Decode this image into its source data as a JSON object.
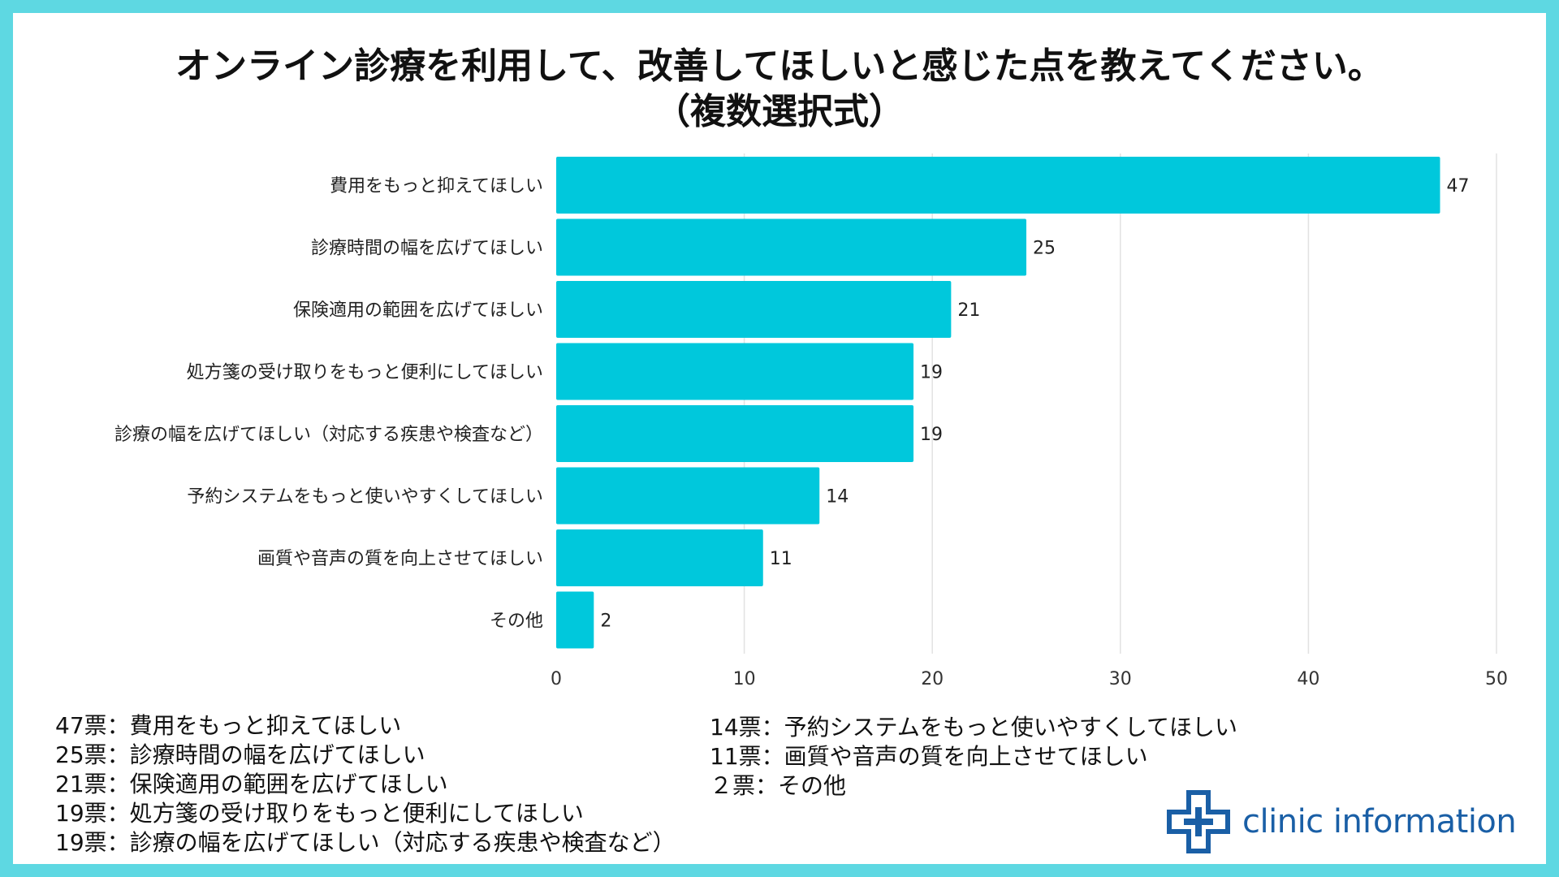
{
  "title_line1": "オンライン診療を利用して、改善してほしいと感じた点を教えてください。",
  "title_line2": "（複数選択式）",
  "chart_data": {
    "type": "bar",
    "orientation": "horizontal",
    "categories": [
      "費用をもっと抑えてほしい",
      "診療時間の幅を広げてほしい",
      "保険適用の範囲を広げてほしい",
      "処方箋の受け取りをもっと便利にしてほしい",
      "診療の幅を広げてほしい（対応する疾患や検査など）",
      "予約システムをもっと使いやすくしてほしい",
      "画質や音声の質を向上させてほしい",
      "その他"
    ],
    "values": [
      47,
      25,
      21,
      19,
      19,
      14,
      11,
      2
    ],
    "xlim": [
      0,
      50
    ],
    "xticks": [
      0,
      10,
      20,
      30,
      40,
      50
    ],
    "grid": true,
    "bar_color": "#00c8dc"
  },
  "legend_left": [
    {
      "count": "47票",
      "sep": "：",
      "text": "費用をもっと抑えてほしい"
    },
    {
      "count": "25票",
      "sep": "：",
      "text": "診療時間の幅を広げてほしい"
    },
    {
      "count": "21票",
      "sep": "：",
      "text": "保険適用の範囲を広げてほしい"
    },
    {
      "count": "19票",
      "sep": "：",
      "text": "処方箋の受け取りをもっと便利にしてほしい"
    },
    {
      "count": "19票",
      "sep": "：",
      "text": "診療の幅を広げてほしい（対応する疾患や検査など）"
    }
  ],
  "legend_right": [
    {
      "count": "14票",
      "sep": "：",
      "text": "予約システムをもっと使いやすくしてほしい"
    },
    {
      "count": "11票",
      "sep": "：",
      "text": "画質や音声の質を向上させてほしい"
    },
    {
      "count": "２票",
      "sep": "：",
      "text": "その他"
    }
  ],
  "logo": {
    "text": "clinic information",
    "color": "#1a5fa6"
  }
}
